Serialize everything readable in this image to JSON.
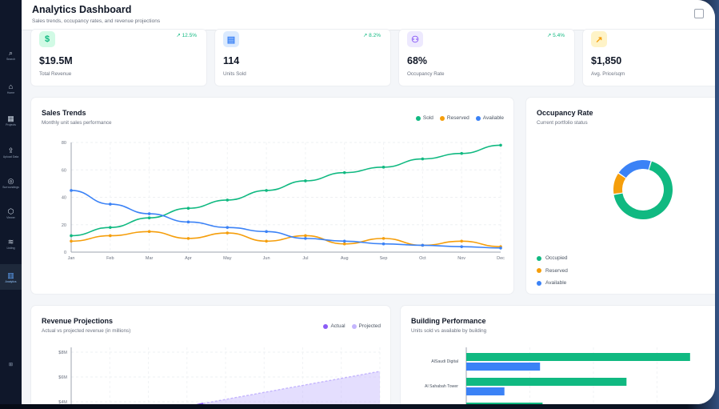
{
  "header": {
    "title": "Analytics Dashboard",
    "subtitle": "Sales trends, occupancy rates, and revenue projections"
  },
  "sidebar": {
    "items": [
      {
        "label": "Search",
        "icon": "search-icon",
        "glyph": "⌕"
      },
      {
        "label": "Home",
        "icon": "home-icon",
        "glyph": "⌂"
      },
      {
        "label": "Projects",
        "icon": "grid-icon",
        "glyph": "▦"
      },
      {
        "label": "Upload Data",
        "icon": "upload-icon",
        "glyph": "⇪"
      },
      {
        "label": "Surroundings",
        "icon": "location-icon",
        "glyph": "◎"
      },
      {
        "label": "Viewer",
        "icon": "cube-icon",
        "glyph": "⬡"
      },
      {
        "label": "Listing",
        "icon": "layers-icon",
        "glyph": "≋"
      },
      {
        "label": "Analytics",
        "icon": "bar-chart-icon",
        "glyph": "▥"
      }
    ],
    "footer": "⊞"
  },
  "stats": [
    {
      "value": "$19.5M",
      "label": "Total Revenue",
      "trend": "↗ 12.5%",
      "icon": "dollar-icon",
      "glyph": "$",
      "color": "#10b981",
      "bg": "#d1fae5"
    },
    {
      "value": "114",
      "label": "Units Sold",
      "trend": "↗ 8.2%",
      "icon": "building-icon",
      "glyph": "▤",
      "color": "#3b82f6",
      "bg": "#dbeafe"
    },
    {
      "value": "68%",
      "label": "Occupancy Rate",
      "trend": "↗ 5.4%",
      "icon": "users-icon",
      "glyph": "⚇",
      "color": "#8b5cf6",
      "bg": "#ede9fe"
    },
    {
      "value": "$1,850",
      "label": "Avg. Price/sqm",
      "trend": "",
      "icon": "trending-up-icon",
      "glyph": "↗",
      "color": "#f59e0b",
      "bg": "#fef3c7"
    }
  ],
  "sales_trends": {
    "title": "Sales Trends",
    "subtitle": "Monthly unit sales performance",
    "legend": [
      "Sold",
      "Reserved",
      "Available"
    ]
  },
  "occupancy": {
    "title": "Occupancy Rate",
    "subtitle": "Current portfolio status",
    "legend": [
      "Occupied",
      "Reserved",
      "Available"
    ]
  },
  "revenue": {
    "title": "Revenue Projections",
    "subtitle": "Actual vs projected revenue (in millions)",
    "legend": [
      "Actual",
      "Projected"
    ]
  },
  "building": {
    "title": "Building Performance",
    "subtitle": "Units sold vs available by building"
  },
  "chart_data": [
    {
      "type": "line",
      "x": [
        "Jan",
        "Feb",
        "Mar",
        "Apr",
        "May",
        "Jun",
        "Jul",
        "Aug",
        "Sep",
        "Oct",
        "Nov",
        "Dec"
      ],
      "ylim": [
        0,
        80
      ],
      "yticks": [
        0,
        20,
        40,
        60,
        80
      ],
      "series": [
        {
          "name": "Sold",
          "color": "#10b981",
          "values": [
            12,
            18,
            25,
            32,
            38,
            45,
            52,
            58,
            62,
            68,
            72,
            78
          ]
        },
        {
          "name": "Reserved",
          "color": "#f59e0b",
          "values": [
            8,
            12,
            15,
            10,
            14,
            8,
            12,
            6,
            10,
            5,
            8,
            4
          ]
        },
        {
          "name": "Available",
          "color": "#3b82f6",
          "values": [
            45,
            35,
            28,
            22,
            18,
            15,
            10,
            8,
            6,
            5,
            4,
            3
          ]
        }
      ]
    },
    {
      "type": "pie",
      "categories": [
        "Occupied",
        "Reserved",
        "Available"
      ],
      "values": [
        68,
        12,
        20
      ],
      "colors": [
        "#10b981",
        "#f59e0b",
        "#3b82f6"
      ]
    },
    {
      "type": "area",
      "yticks": [
        "$8M",
        "$6M",
        "$4M"
      ],
      "series": [
        {
          "name": "Actual",
          "color": "#8b5cf6"
        },
        {
          "name": "Projected",
          "color": "#c4b5fd"
        }
      ]
    },
    {
      "type": "bar",
      "categories": [
        "AlSaudi Digital",
        "Al Sahabah Tower",
        ""
      ],
      "series": [
        {
          "name": "Sold",
          "color": "#10b981",
          "values": [
            88,
            63,
            30
          ]
        },
        {
          "name": "Available",
          "color": "#3b82f6",
          "values": [
            29,
            15,
            0
          ]
        }
      ]
    }
  ]
}
